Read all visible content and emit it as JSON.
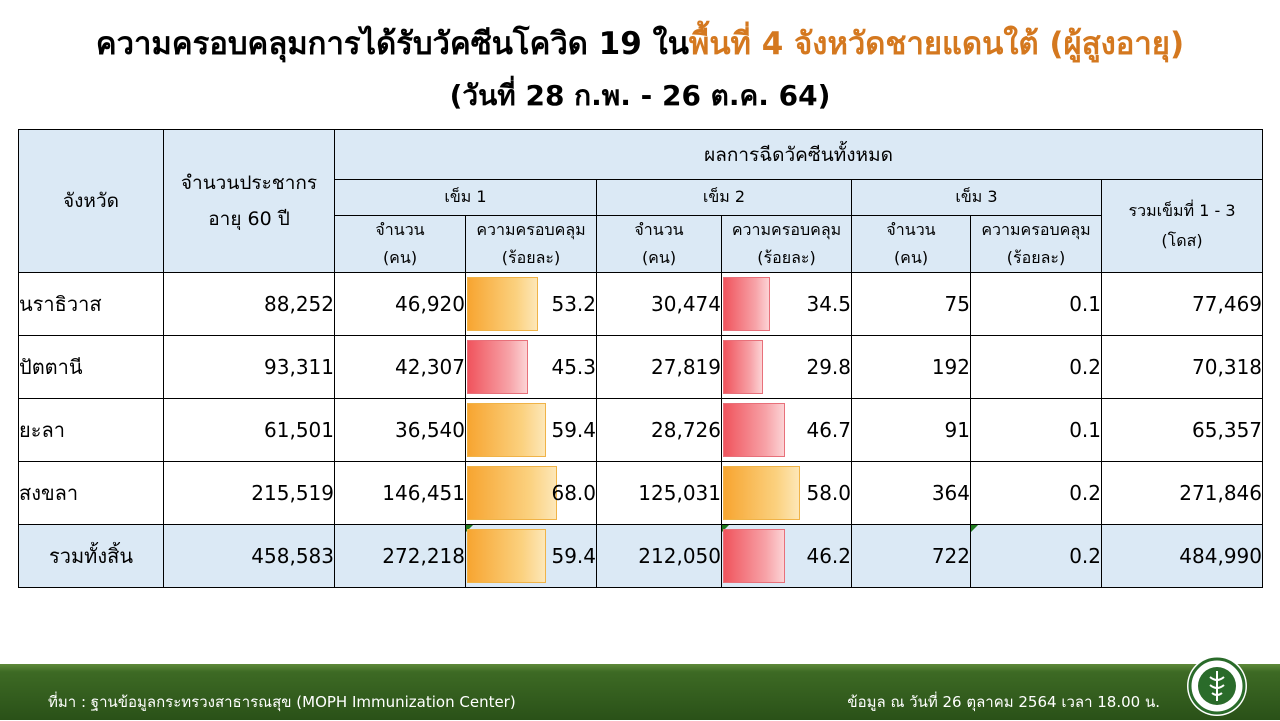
{
  "title_part1": "ความครอบคลุมการได้รับวัคซีนโควิด 19 ใน",
  "title_highlight": "พื้นที่ 4 จังหวัดชายแดนใต้ (ผู้สูงอายุ)",
  "subtitle": "(วันที่ 28 ก.พ. - 26 ต.ค. 64)",
  "colors": {
    "title_highlight": "#d4781f",
    "header_bg": "#dbe9f5",
    "bar_orange": "#f7a531",
    "bar_red": "#f0545d",
    "footer_green": "#2a5118"
  },
  "table": {
    "headers": {
      "province": "จังหวัด",
      "population_line1": "จำนวนประชากร",
      "population_line2": "อายุ 60 ปี",
      "vaccination_results": "ผลการฉีดวัคซีนทั้งหมด",
      "dose1": "เข็ม 1",
      "dose2": "เข็ม 2",
      "dose3": "เข็ม 3",
      "total_line1": "รวมเข็มที่ 1 - 3",
      "total_line2": "(โดส)",
      "count": "จำนวน",
      "count_unit": "(คน)",
      "coverage": "ความครอบคลุม",
      "coverage_unit": "(ร้อยละ)"
    },
    "rows": [
      {
        "province": "นราธิวาส",
        "population": "88,252",
        "d1": "46,920",
        "d1_pct": "53.2",
        "d1_pct_value": 53.2,
        "d1_color": "orange",
        "d2": "30,474",
        "d2_pct": "34.5",
        "d2_pct_value": 34.5,
        "d2_color": "red",
        "d3": "75",
        "d3_pct": "0.1",
        "total": "77,469"
      },
      {
        "province": "ปัตตานี",
        "population": "93,311",
        "d1": "42,307",
        "d1_pct": "45.3",
        "d1_pct_value": 45.3,
        "d1_color": "red",
        "d2": "27,819",
        "d2_pct": "29.8",
        "d2_pct_value": 29.8,
        "d2_color": "red",
        "d3": "192",
        "d3_pct": "0.2",
        "total": "70,318"
      },
      {
        "province": "ยะลา",
        "population": "61,501",
        "d1": "36,540",
        "d1_pct": "59.4",
        "d1_pct_value": 59.4,
        "d1_color": "orange",
        "d2": "28,726",
        "d2_pct": "46.7",
        "d2_pct_value": 46.7,
        "d2_color": "red",
        "d3": "91",
        "d3_pct": "0.1",
        "total": "65,357"
      },
      {
        "province": "สงขลา",
        "population": "215,519",
        "d1": "146,451",
        "d1_pct": "68.0",
        "d1_pct_value": 68.0,
        "d1_color": "orange",
        "d2": "125,031",
        "d2_pct": "58.0",
        "d2_pct_value": 58.0,
        "d2_color": "orange",
        "d3": "364",
        "d3_pct": "0.2",
        "total": "271,846"
      }
    ],
    "total_row": {
      "province": "รวมทั้งสิ้น",
      "population": "458,583",
      "d1": "272,218",
      "d1_pct": "59.4",
      "d1_pct_value": 59.4,
      "d1_color": "orange",
      "d2": "212,050",
      "d2_pct": "46.2",
      "d2_pct_value": 46.2,
      "d2_color": "red",
      "d3": "722",
      "d3_pct": "0.2",
      "total": "484,990"
    }
  },
  "footer": {
    "source": "ที่มา : ฐานข้อมูลกระทรวงสาธารณสุข (MOPH  Immunization Center)",
    "data_date": "ข้อมูล ณ วันที่ 26 ตุลาคม 2564 เวลา 18.00 น."
  },
  "logo_icon": "ministry-of-public-health-seal-icon"
}
